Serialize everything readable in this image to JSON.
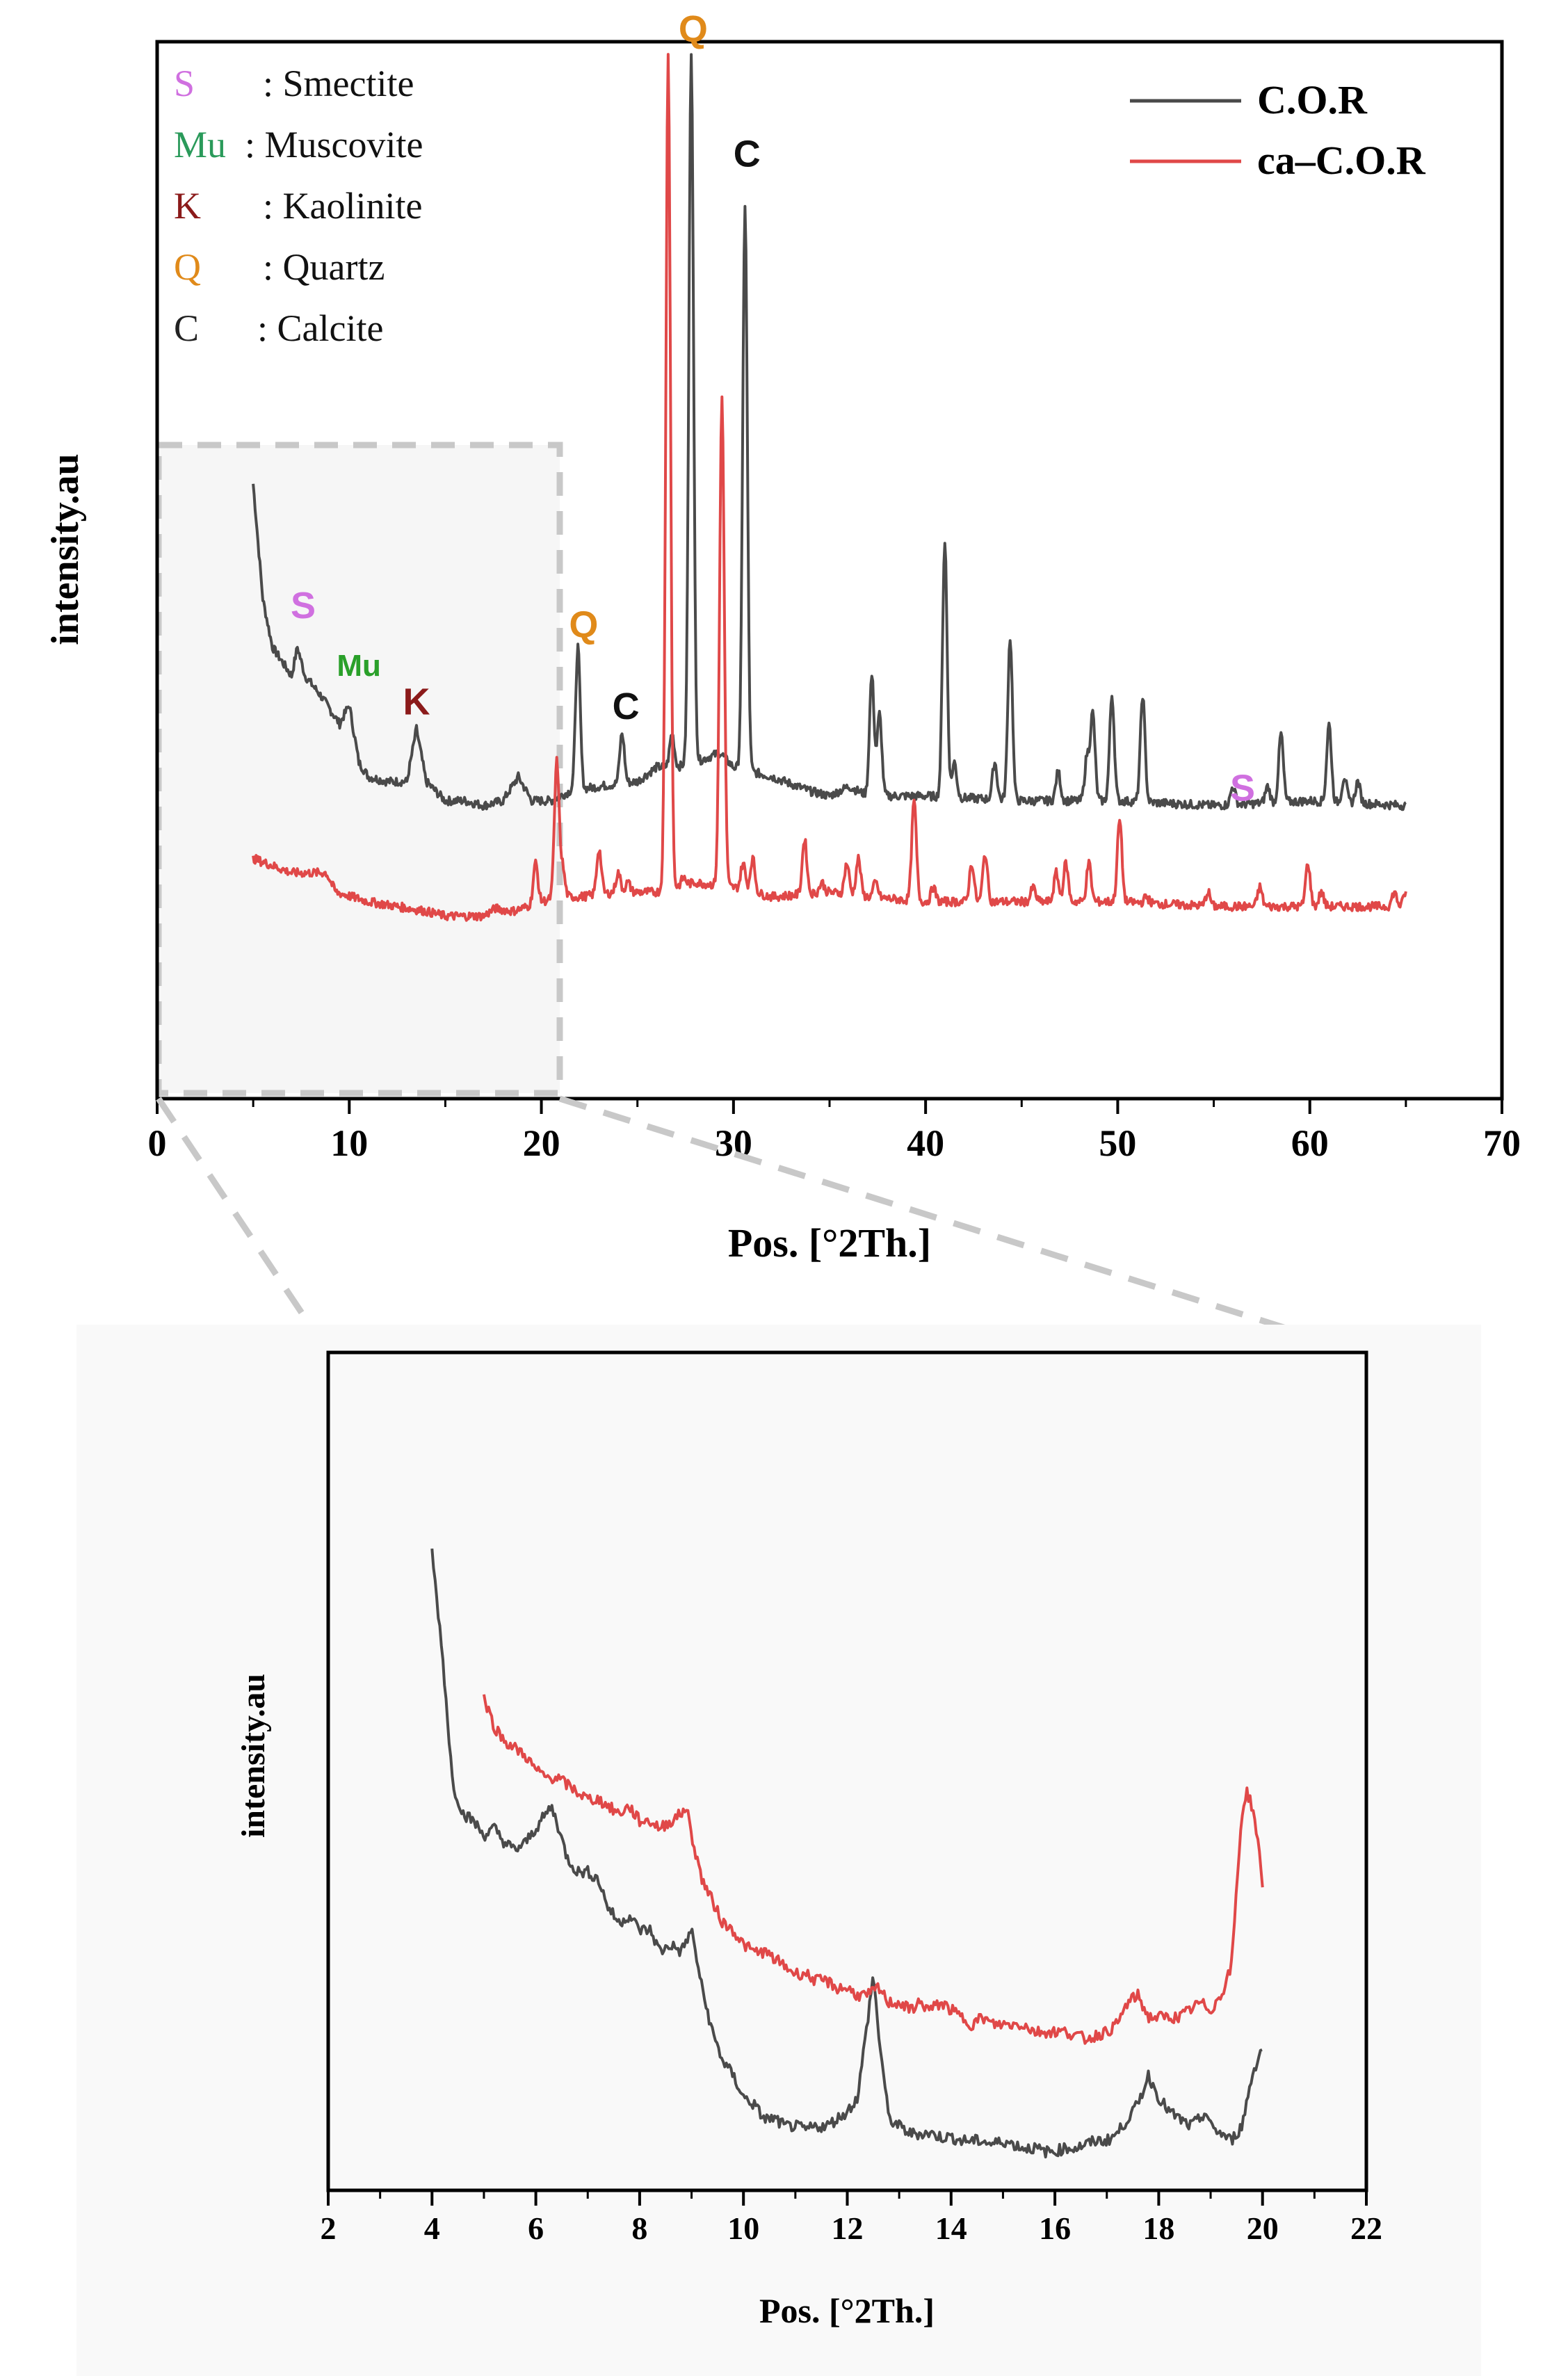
{
  "chart_data": [
    {
      "type": "line",
      "title": "",
      "xlabel": "Pos. [°2Th.]",
      "ylabel": "intensity.au",
      "xlim": [
        0,
        70
      ],
      "xticks": [
        0,
        10,
        20,
        30,
        40,
        50,
        60,
        70
      ],
      "ylim": [
        0,
        110
      ],
      "grid": false,
      "legend_position": "top-right",
      "legend": [
        {
          "name": "C.O.R",
          "color": "#4a4a4a"
        },
        {
          "name": "ca–C.O.R",
          "color": "#e04848"
        }
      ],
      "mineral_key": [
        {
          "symbol": "S",
          "name": ": Smectite",
          "color": "#d070e0"
        },
        {
          "symbol": "Mu",
          "name": ": Muscovite",
          "color": "#2a9a5a"
        },
        {
          "symbol": "K",
          "name": ": Kaolinite",
          "color": "#8b1a1a"
        },
        {
          "symbol": "Q",
          "name": ": Quartz",
          "color": "#e08a1a"
        },
        {
          "symbol": "C",
          "name": ": Calcite",
          "color": "#222222"
        }
      ],
      "peak_labels": [
        {
          "text": "S",
          "x": 7.6,
          "y": 50,
          "color": "#d070e0"
        },
        {
          "text": "Mu",
          "x": 10.5,
          "y": 44,
          "color": "#2aa02a"
        },
        {
          "text": "K",
          "x": 13.5,
          "y": 40,
          "color": "#8b1a1a"
        },
        {
          "text": "Q",
          "x": 22.2,
          "y": 48,
          "color": "#e08a1a"
        },
        {
          "text": "C",
          "x": 24.4,
          "y": 39.5,
          "color": "#111111"
        },
        {
          "text": "Q",
          "x": 27.9,
          "y": 110,
          "color": "#e08a1a"
        },
        {
          "text": "C",
          "x": 30.7,
          "y": 97,
          "color": "#111111"
        },
        {
          "text": "S",
          "x": 56.5,
          "y": 31,
          "color": "#d070e0"
        }
      ],
      "series": [
        {
          "name": "C.O.R",
          "color": "#4a4a4a",
          "baseline": [
            [
              5,
              64
            ],
            [
              5.5,
              52
            ],
            [
              6,
              47
            ],
            [
              6.5,
              45.5
            ],
            [
              7,
              44
            ],
            [
              7.3,
              47
            ],
            [
              7.7,
              44
            ],
            [
              8.5,
              42
            ],
            [
              9.5,
              39
            ],
            [
              10,
              41
            ],
            [
              10.5,
              35
            ],
            [
              11,
              33.5
            ],
            [
              12,
              33
            ],
            [
              13,
              33
            ],
            [
              13.5,
              38.5
            ],
            [
              14,
              33
            ],
            [
              15,
              31
            ],
            [
              16,
              31
            ],
            [
              17,
              30.5
            ],
            [
              18,
              31
            ],
            [
              18.8,
              33.5
            ],
            [
              19.5,
              31
            ],
            [
              20.5,
              31
            ],
            [
              21,
              31.5
            ],
            [
              21.5,
              32
            ],
            [
              23,
              32.5
            ],
            [
              25,
              33
            ],
            [
              26,
              34.5
            ],
            [
              27,
              34.5
            ],
            [
              28,
              35
            ],
            [
              29.3,
              36
            ],
            [
              30,
              34.5
            ],
            [
              31,
              34
            ],
            [
              32,
              33.5
            ],
            [
              34,
              32
            ],
            [
              35,
              31.5
            ],
            [
              36,
              32.5
            ],
            [
              37,
              31.5
            ],
            [
              40,
              31.5
            ],
            [
              45,
              31
            ],
            [
              50,
              31
            ],
            [
              55,
              30.5
            ],
            [
              60,
              31
            ],
            [
              65,
              30.5
            ]
          ],
          "peaks": [
            [
              21.9,
              47
            ],
            [
              24.2,
              38
            ],
            [
              26,
              34.5
            ],
            [
              26.8,
              38
            ],
            [
              27.8,
              109
            ],
            [
              30.6,
              93
            ],
            [
              32,
              33.5
            ],
            [
              37.2,
              44
            ],
            [
              37.6,
              40
            ],
            [
              41,
              58
            ],
            [
              41.5,
              35
            ],
            [
              43.6,
              35
            ],
            [
              44.4,
              48
            ],
            [
              46.9,
              34
            ],
            [
              48.4,
              35.5
            ],
            [
              48.7,
              40
            ],
            [
              49.7,
              42
            ],
            [
              51.3,
              42
            ],
            [
              56,
              32.5
            ],
            [
              57.8,
              32.5
            ],
            [
              58.5,
              38
            ],
            [
              61,
              39
            ],
            [
              61.8,
              33.5
            ],
            [
              62.5,
              33
            ]
          ]
        },
        {
          "name": "ca–C.O.R",
          "color": "#e04848",
          "baseline": [
            [
              5,
              25
            ],
            [
              7,
              23.5
            ],
            [
              8.8,
              23.5
            ],
            [
              9.3,
              21.5
            ],
            [
              11,
              20.5
            ],
            [
              14,
              19.5
            ],
            [
              15,
              19
            ],
            [
              17,
              19
            ],
            [
              17.6,
              19.8
            ],
            [
              18.5,
              19.5
            ],
            [
              19.3,
              20
            ],
            [
              20,
              20.5
            ],
            [
              21,
              21
            ],
            [
              22,
              21
            ],
            [
              24,
              21.5
            ],
            [
              26,
              21.5
            ],
            [
              28,
              22.5
            ],
            [
              30,
              22
            ],
            [
              32,
              21
            ],
            [
              35,
              21.5
            ],
            [
              37,
              21
            ],
            [
              40,
              20.5
            ],
            [
              45,
              20.5
            ],
            [
              50,
              20.5
            ],
            [
              55,
              20
            ],
            [
              60,
              20
            ],
            [
              65,
              20
            ]
          ],
          "peaks": [
            [
              19.7,
              24.5
            ],
            [
              20.8,
              35
            ],
            [
              21.1,
              24
            ],
            [
              23,
              26
            ],
            [
              24,
              23.5
            ],
            [
              24.5,
              22.5
            ],
            [
              26.6,
              108.5
            ],
            [
              27.4,
              23
            ],
            [
              29.4,
              73
            ],
            [
              30.5,
              24.5
            ],
            [
              31,
              25
            ],
            [
              33.7,
              27
            ],
            [
              34.6,
              22.5
            ],
            [
              35.9,
              24.5
            ],
            [
              36.5,
              25
            ],
            [
              37.4,
              22.5
            ],
            [
              39.4,
              31
            ],
            [
              40.4,
              22
            ],
            [
              42.4,
              24.5
            ],
            [
              43.1,
              25.5
            ],
            [
              45.6,
              22
            ],
            [
              46.8,
              23.5
            ],
            [
              47.3,
              24.5
            ],
            [
              48.5,
              24.5
            ],
            [
              50.1,
              29
            ],
            [
              51.5,
              21
            ],
            [
              54.7,
              21.5
            ],
            [
              57.4,
              22
            ],
            [
              59.9,
              24.5
            ],
            [
              60.6,
              21.5
            ],
            [
              64.4,
              21.5
            ],
            [
              65,
              21.5
            ]
          ]
        }
      ]
    },
    {
      "type": "line",
      "title": "",
      "xlabel": "Pos. [°2Th.]",
      "ylabel": "intensity.au",
      "xlim": [
        2,
        22
      ],
      "xticks": [
        2,
        4,
        6,
        8,
        10,
        12,
        14,
        16,
        18,
        20,
        22
      ],
      "ylim": [
        0,
        100
      ],
      "grid": false,
      "series": [
        {
          "name": "C.O.R",
          "color": "#4a4a4a",
          "x": [
            4,
            4.2,
            4.4,
            4.6,
            4.8,
            5,
            5.2,
            5.4,
            5.6,
            5.8,
            6,
            6.2,
            6.3,
            6.4,
            6.6,
            6.8,
            7,
            7.2,
            7.4,
            7.6,
            7.8,
            8,
            8.2,
            8.4,
            8.6,
            8.8,
            9,
            9.2,
            9.4,
            9.6,
            9.8,
            10,
            10.2,
            10.4,
            10.6,
            10.8,
            11,
            11.2,
            11.4,
            11.6,
            11.8,
            12,
            12.2,
            12.4,
            12.5,
            12.6,
            12.8,
            13,
            13.2,
            13.4,
            13.6,
            13.8,
            14,
            14.2,
            14.4,
            14.6,
            14.8,
            15,
            15.2,
            15.4,
            15.6,
            15.8,
            16,
            16.2,
            16.4,
            16.6,
            16.8,
            17,
            17.2,
            17.4,
            17.6,
            17.8,
            18,
            18.2,
            18.4,
            18.6,
            18.8,
            18.9,
            19,
            19.2,
            19.4,
            19.6,
            19.8,
            20
          ],
          "y": [
            84,
            70,
            52,
            48,
            47,
            45,
            46,
            44,
            43,
            44,
            46,
            48,
            49,
            47,
            42,
            40,
            40,
            39,
            35,
            33,
            34,
            32,
            32,
            29,
            30,
            29,
            32,
            24,
            18,
            14,
            12,
            9,
            8,
            6,
            6,
            5,
            5,
            4.5,
            5,
            5,
            6,
            7,
            9,
            20,
            26,
            18,
            6,
            5,
            4,
            4,
            4,
            3.5,
            3.5,
            3,
            3,
            3,
            2.5,
            3,
            2.5,
            2,
            2,
            1.5,
            1.5,
            2,
            2,
            2.5,
            3,
            3,
            4,
            6,
            8,
            12,
            9,
            7,
            6,
            5,
            6,
            7,
            5,
            4,
            3,
            5,
            12,
            16
          ]
        },
        {
          "name": "ca–C.O.R",
          "color": "#e04848",
          "x": [
            5,
            5.2,
            5.4,
            5.6,
            5.8,
            6,
            6.2,
            6.4,
            6.6,
            6.8,
            7,
            7.2,
            7.4,
            7.6,
            7.8,
            8,
            8.2,
            8.4,
            8.6,
            8.8,
            8.9,
            9,
            9.2,
            9.4,
            9.6,
            9.8,
            10,
            10.2,
            10.4,
            10.6,
            10.8,
            11,
            11.2,
            11.4,
            11.6,
            11.8,
            12,
            12.2,
            12.4,
            12.6,
            12.8,
            13,
            13.2,
            13.4,
            13.6,
            13.8,
            14,
            14.2,
            14.4,
            14.6,
            14.8,
            15,
            15.2,
            15.4,
            15.6,
            15.8,
            16,
            16.2,
            16.4,
            16.6,
            16.8,
            17,
            17.2,
            17.4,
            17.6,
            17.8,
            18,
            18.2,
            18.4,
            18.6,
            18.8,
            19,
            19.2,
            19.4,
            19.6,
            19.7,
            19.8,
            19.9,
            20
          ],
          "y": [
            64,
            60,
            58,
            57,
            56,
            54,
            53,
            53,
            52,
            51,
            50,
            50,
            49,
            48,
            49,
            47,
            47,
            46,
            47,
            48,
            49,
            45,
            39,
            36,
            33,
            32,
            30,
            29,
            29,
            28,
            27,
            26,
            26,
            25,
            25,
            24,
            24,
            23,
            23,
            24,
            22,
            22,
            21,
            22,
            21,
            22,
            21,
            20,
            19,
            20,
            19,
            19,
            19,
            19,
            18,
            18,
            18,
            18,
            17.5,
            17,
            17.5,
            18,
            19,
            22,
            23,
            20,
            20,
            20,
            20,
            21,
            22,
            21,
            23,
            27,
            48,
            51,
            49,
            45,
            38
          ]
        }
      ]
    }
  ]
}
